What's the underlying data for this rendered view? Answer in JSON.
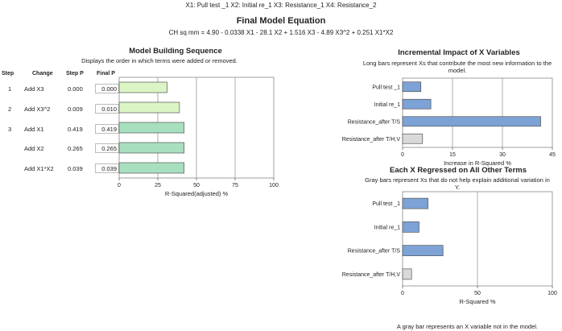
{
  "header": {
    "variables": "X1: Pull test _1    X2: Initial re_1    X3: Resistance_1    X4: Resistance_2",
    "equation_title": "Final Model Equation",
    "equation": "CH sq mm   =   4.90 - 0.0338 X1 - 28.1 X2 + 1.516 X3 - 4.89 X3^2 + 0.251 X1*X2"
  },
  "building": {
    "title": "Model Building Sequence",
    "subtitle": "Displays the order in which terms were added or removed.",
    "columns": {
      "step": "Step",
      "change": "Change",
      "step_p": "Step P",
      "final_p": "Final P"
    },
    "rows": [
      {
        "step": "1",
        "change": "Add X3",
        "step_p": "0.000",
        "final_p": "0.000"
      },
      {
        "step": "2",
        "change": "Add X3^2",
        "step_p": "0.009",
        "final_p": "0.010"
      },
      {
        "step": "3",
        "change": "Add X1",
        "step_p": "0.419",
        "final_p": "0.419"
      },
      {
        "step": "",
        "change": "Add X2",
        "step_p": "0.265",
        "final_p": "0.265"
      },
      {
        "step": "",
        "change": "Add X1*X2",
        "step_p": "0.039",
        "final_p": "0.039"
      }
    ]
  },
  "footnote": "A gray bar represents an X variable not in the model.",
  "chart_data": [
    {
      "type": "bar",
      "orientation": "horizontal",
      "categories": [
        "Add X3",
        "Add X3^2",
        "Add X1",
        "Add X2",
        "Add X1*X2"
      ],
      "values": [
        31,
        39,
        42,
        42,
        42
      ],
      "bar_colors": [
        "#dcf5c5",
        "#dcf5c5",
        "#a8e0bf",
        "#a8e0bf",
        "#a8e0bf"
      ],
      "xlabel": "R-Squared(adjusted) %",
      "xlim": [
        0,
        100
      ],
      "ticks": [
        0,
        25,
        50,
        75,
        100
      ],
      "grid": true
    },
    {
      "type": "bar",
      "orientation": "horizontal",
      "title": "Incremental Impact of X Variables",
      "subtitle": "Long bars represent Xs that contribute the most new information to the model.",
      "categories": [
        "Pull test _1",
        "Initial re_1",
        "Resistance_after T/S",
        "Resistance_after T/H,V"
      ],
      "values": [
        5.5,
        8.5,
        41.5,
        6.0
      ],
      "bar_colors": [
        "#7da2d6",
        "#7da2d6",
        "#7da2d6",
        "#d9d9d9"
      ],
      "xlabel": "Increase in R-Squared %",
      "xlim": [
        0,
        45
      ],
      "ticks": [
        0,
        15,
        30,
        45
      ],
      "grid": true
    },
    {
      "type": "bar",
      "orientation": "horizontal",
      "title": "Each X Regressed on All Other Terms",
      "subtitle": "Gray bars represent Xs that do not help explain additional variation in Y.",
      "categories": [
        "Pull test _1",
        "Initial re_1",
        "Resistance_after T/S",
        "Resistance_after T/H,V"
      ],
      "values": [
        17,
        11,
        27,
        6
      ],
      "bar_colors": [
        "#7da2d6",
        "#7da2d6",
        "#7da2d6",
        "#d9d9d9"
      ],
      "xlabel": "R-Squared %",
      "xlim": [
        0,
        100
      ],
      "ticks": [
        0,
        50,
        100
      ],
      "grid": true
    }
  ]
}
